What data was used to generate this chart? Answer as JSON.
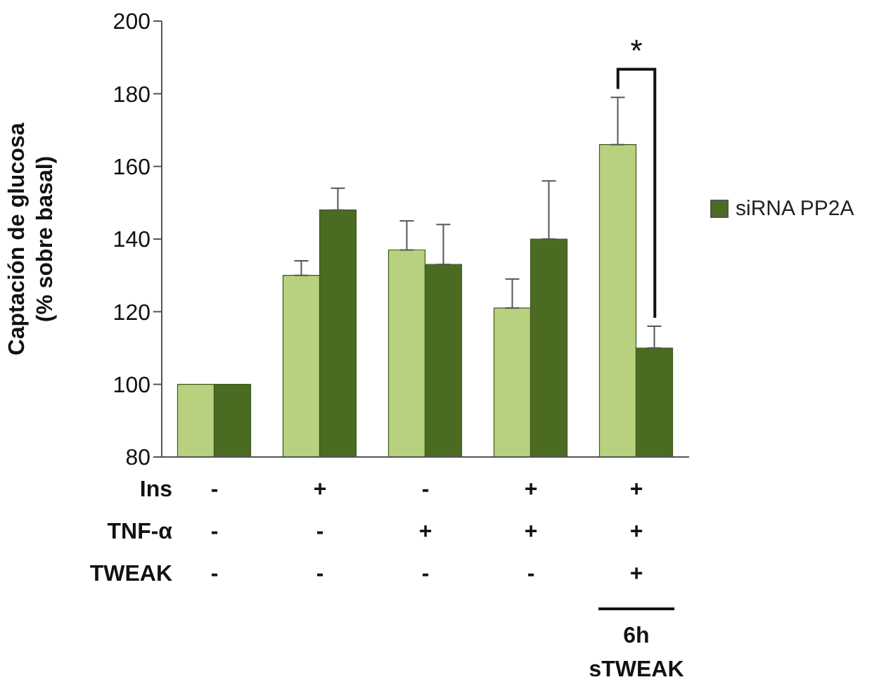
{
  "chart_data": {
    "type": "bar",
    "ylabel": "Captación de glucosa\n(% sobre basal)",
    "categories": [
      "-\n-\n-",
      "+\n-\n-",
      "-\n+\n-",
      "+\n+\n-",
      "+\n+\n+"
    ],
    "series": [
      {
        "color": "#b8d17f",
        "values": [
          100,
          130,
          137,
          121,
          166
        ],
        "errors": [
          null,
          [
            130,
            134
          ],
          [
            137,
            145
          ],
          [
            121,
            129
          ],
          [
            166,
            179
          ]
        ]
      },
      {
        "name": "siRNA PP2A",
        "color": "#4b6b23",
        "values": [
          100,
          148,
          133,
          140,
          110
        ],
        "errors": [
          null,
          [
            148,
            154
          ],
          [
            133,
            144
          ],
          [
            140,
            156
          ],
          [
            110,
            116
          ]
        ]
      }
    ],
    "ylim": [
      80,
      200
    ],
    "yticks": [
      80,
      100,
      120,
      140,
      160,
      180,
      200
    ],
    "legend": "right",
    "annotations": [
      "Ins",
      "TNF-α",
      "TWEAK",
      "6h\nsTWEAK",
      "*"
    ]
  }
}
